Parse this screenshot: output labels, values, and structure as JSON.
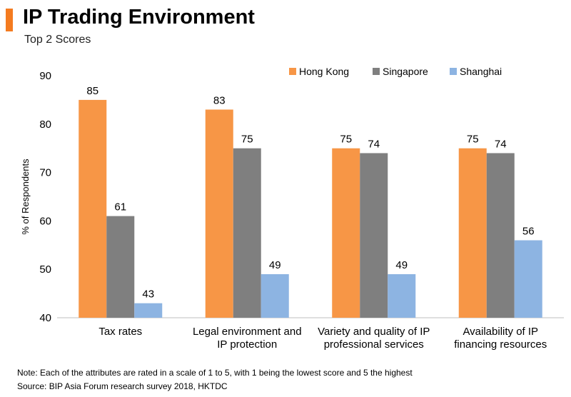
{
  "header": {
    "title": "IP Trading Environment",
    "subtitle": "Top 2 Scores"
  },
  "colors": {
    "accent": "#f47b20",
    "hong_kong": "#f79646",
    "singapore": "#7f7f7f",
    "shanghai": "#8db4e2"
  },
  "chart_data": {
    "type": "bar",
    "title": "IP Trading Environment",
    "subtitle": "Top 2 Scores",
    "xlabel": "",
    "ylabel": "% of Respondents",
    "ylim": [
      40,
      90
    ],
    "yticks": [
      40,
      50,
      60,
      70,
      80,
      90
    ],
    "grid": false,
    "legend_position": "top-right",
    "categories": [
      [
        "Tax rates"
      ],
      [
        "Legal environment and",
        "IP protection"
      ],
      [
        "Variety and quality of IP",
        "professional services"
      ],
      [
        "Availability of IP",
        "financing resources"
      ]
    ],
    "series": [
      {
        "name": "Hong Kong",
        "color": "#f79646",
        "values": [
          85,
          83,
          75,
          75
        ]
      },
      {
        "name": "Singapore",
        "color": "#7f7f7f",
        "values": [
          61,
          75,
          74,
          74
        ]
      },
      {
        "name": "Shanghai",
        "color": "#8db4e2",
        "values": [
          43,
          49,
          49,
          56
        ]
      }
    ]
  },
  "footer": {
    "note": "Note: Each of the attributes are rated in a scale of 1 to 5, with 1 being the lowest score and 5 the highest",
    "source": "Source: BIP Asia Forum research survey 2018, HKTDC"
  }
}
